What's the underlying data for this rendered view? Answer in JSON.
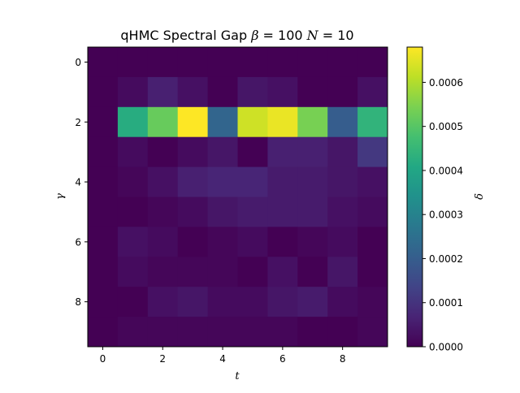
{
  "chart_data": {
    "type": "heatmap",
    "title": {
      "prefix": "qHMC Spectral Gap",
      "beta_symbol": "β",
      "beta_eq": " = 100 ",
      "n_symbol": "N",
      "n_eq": " = 10"
    },
    "xlabel": "t",
    "ylabel": "γ",
    "colorbar_label": "δ",
    "x": [
      0,
      1,
      2,
      3,
      4,
      5,
      6,
      7,
      8,
      9
    ],
    "y": [
      0,
      1,
      2,
      3,
      4,
      5,
      6,
      7,
      8,
      9
    ],
    "xticks": [
      0,
      2,
      4,
      6,
      8
    ],
    "xtick_labels": [
      "0",
      "2",
      "4",
      "6",
      "8"
    ],
    "yticks": [
      0,
      2,
      4,
      6,
      8
    ],
    "ytick_labels": [
      "0",
      "2",
      "4",
      "6",
      "8"
    ],
    "colorbar": {
      "vmin": 0.0,
      "vmax": 0.00068,
      "ticks": [
        0.0,
        0.0001,
        0.0002,
        0.0003,
        0.0004,
        0.0005,
        0.0006
      ],
      "tick_labels": [
        "0.0000",
        "0.0001",
        "0.0002",
        "0.0003",
        "0.0004",
        "0.0005",
        "0.0006"
      ],
      "colormap": "viridis"
    },
    "values": [
      [
        0.0,
        0.0,
        0.0,
        0.0,
        0.0,
        0.0,
        0.0,
        0.0,
        0.0,
        0.0
      ],
      [
        0.0,
        2e-05,
        6e-05,
        3e-05,
        0.0,
        4e-05,
        3e-05,
        0.0,
        0.0,
        3e-05
      ],
      [
        0.0,
        0.00042,
        0.00052,
        0.00068,
        0.00022,
        0.00063,
        0.00066,
        0.00054,
        0.0002,
        0.00044
      ],
      [
        0.0,
        2e-05,
        0.0,
        2e-05,
        4e-05,
        0.0,
        6e-05,
        6e-05,
        4e-05,
        0.00011
      ],
      [
        0.0,
        1e-05,
        3e-05,
        6e-05,
        7e-05,
        7e-05,
        5e-05,
        5e-05,
        4e-05,
        3e-05
      ],
      [
        0.0,
        0.0,
        1e-05,
        2e-05,
        4e-05,
        5e-05,
        5e-05,
        5e-05,
        3e-05,
        2e-05
      ],
      [
        0.0,
        3e-05,
        2e-05,
        0.0,
        1e-05,
        2e-05,
        0.0,
        1e-05,
        2e-05,
        0.0
      ],
      [
        0.0,
        2e-05,
        1e-05,
        1e-05,
        1e-05,
        0.0,
        3e-05,
        0.0,
        4e-05,
        0.0
      ],
      [
        0.0,
        0.0,
        3e-05,
        4e-05,
        2e-05,
        2e-05,
        4e-05,
        5e-05,
        2e-05,
        1e-05
      ],
      [
        0.0,
        1e-05,
        1e-05,
        1e-05,
        1e-05,
        1e-05,
        1e-05,
        0.0,
        0.0,
        1e-05
      ]
    ]
  }
}
